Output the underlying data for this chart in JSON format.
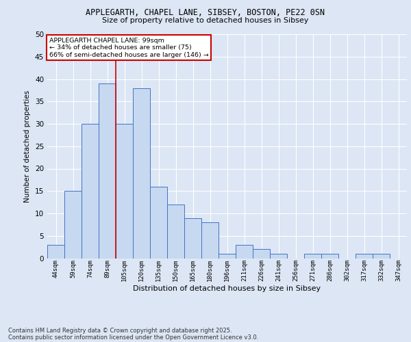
{
  "title_line1": "APPLEGARTH, CHAPEL LANE, SIBSEY, BOSTON, PE22 0SN",
  "title_line2": "Size of property relative to detached houses in Sibsey",
  "xlabel": "Distribution of detached houses by size in Sibsey",
  "ylabel": "Number of detached properties",
  "bar_labels": [
    "44sqm",
    "59sqm",
    "74sqm",
    "89sqm",
    "105sqm",
    "120sqm",
    "135sqm",
    "150sqm",
    "165sqm",
    "180sqm",
    "196sqm",
    "211sqm",
    "226sqm",
    "241sqm",
    "256sqm",
    "271sqm",
    "286sqm",
    "302sqm",
    "317sqm",
    "332sqm",
    "347sqm"
  ],
  "bar_values": [
    3,
    15,
    30,
    39,
    30,
    38,
    16,
    12,
    9,
    8,
    1,
    3,
    2,
    1,
    0,
    1,
    1,
    0,
    1,
    1,
    0
  ],
  "bar_color": "#c6d9f0",
  "bar_edge_color": "#4472c4",
  "property_line_x": 3.5,
  "annotation_title": "APPLEGARTH CHAPEL LANE: 99sqm",
  "annotation_line1": "← 34% of detached houses are smaller (75)",
  "annotation_line2": "66% of semi-detached houses are larger (146) →",
  "annotation_box_color": "#ffffff",
  "annotation_box_edge_color": "#cc0000",
  "vline_color": "#cc0000",
  "background_color": "#dce6f5",
  "plot_bg_color": "#dce6f5",
  "grid_color": "#ffffff",
  "ylim": [
    0,
    50
  ],
  "yticks": [
    0,
    5,
    10,
    15,
    20,
    25,
    30,
    35,
    40,
    45,
    50
  ],
  "footnote_line1": "Contains HM Land Registry data © Crown copyright and database right 2025.",
  "footnote_line2": "Contains public sector information licensed under the Open Government Licence v3.0."
}
